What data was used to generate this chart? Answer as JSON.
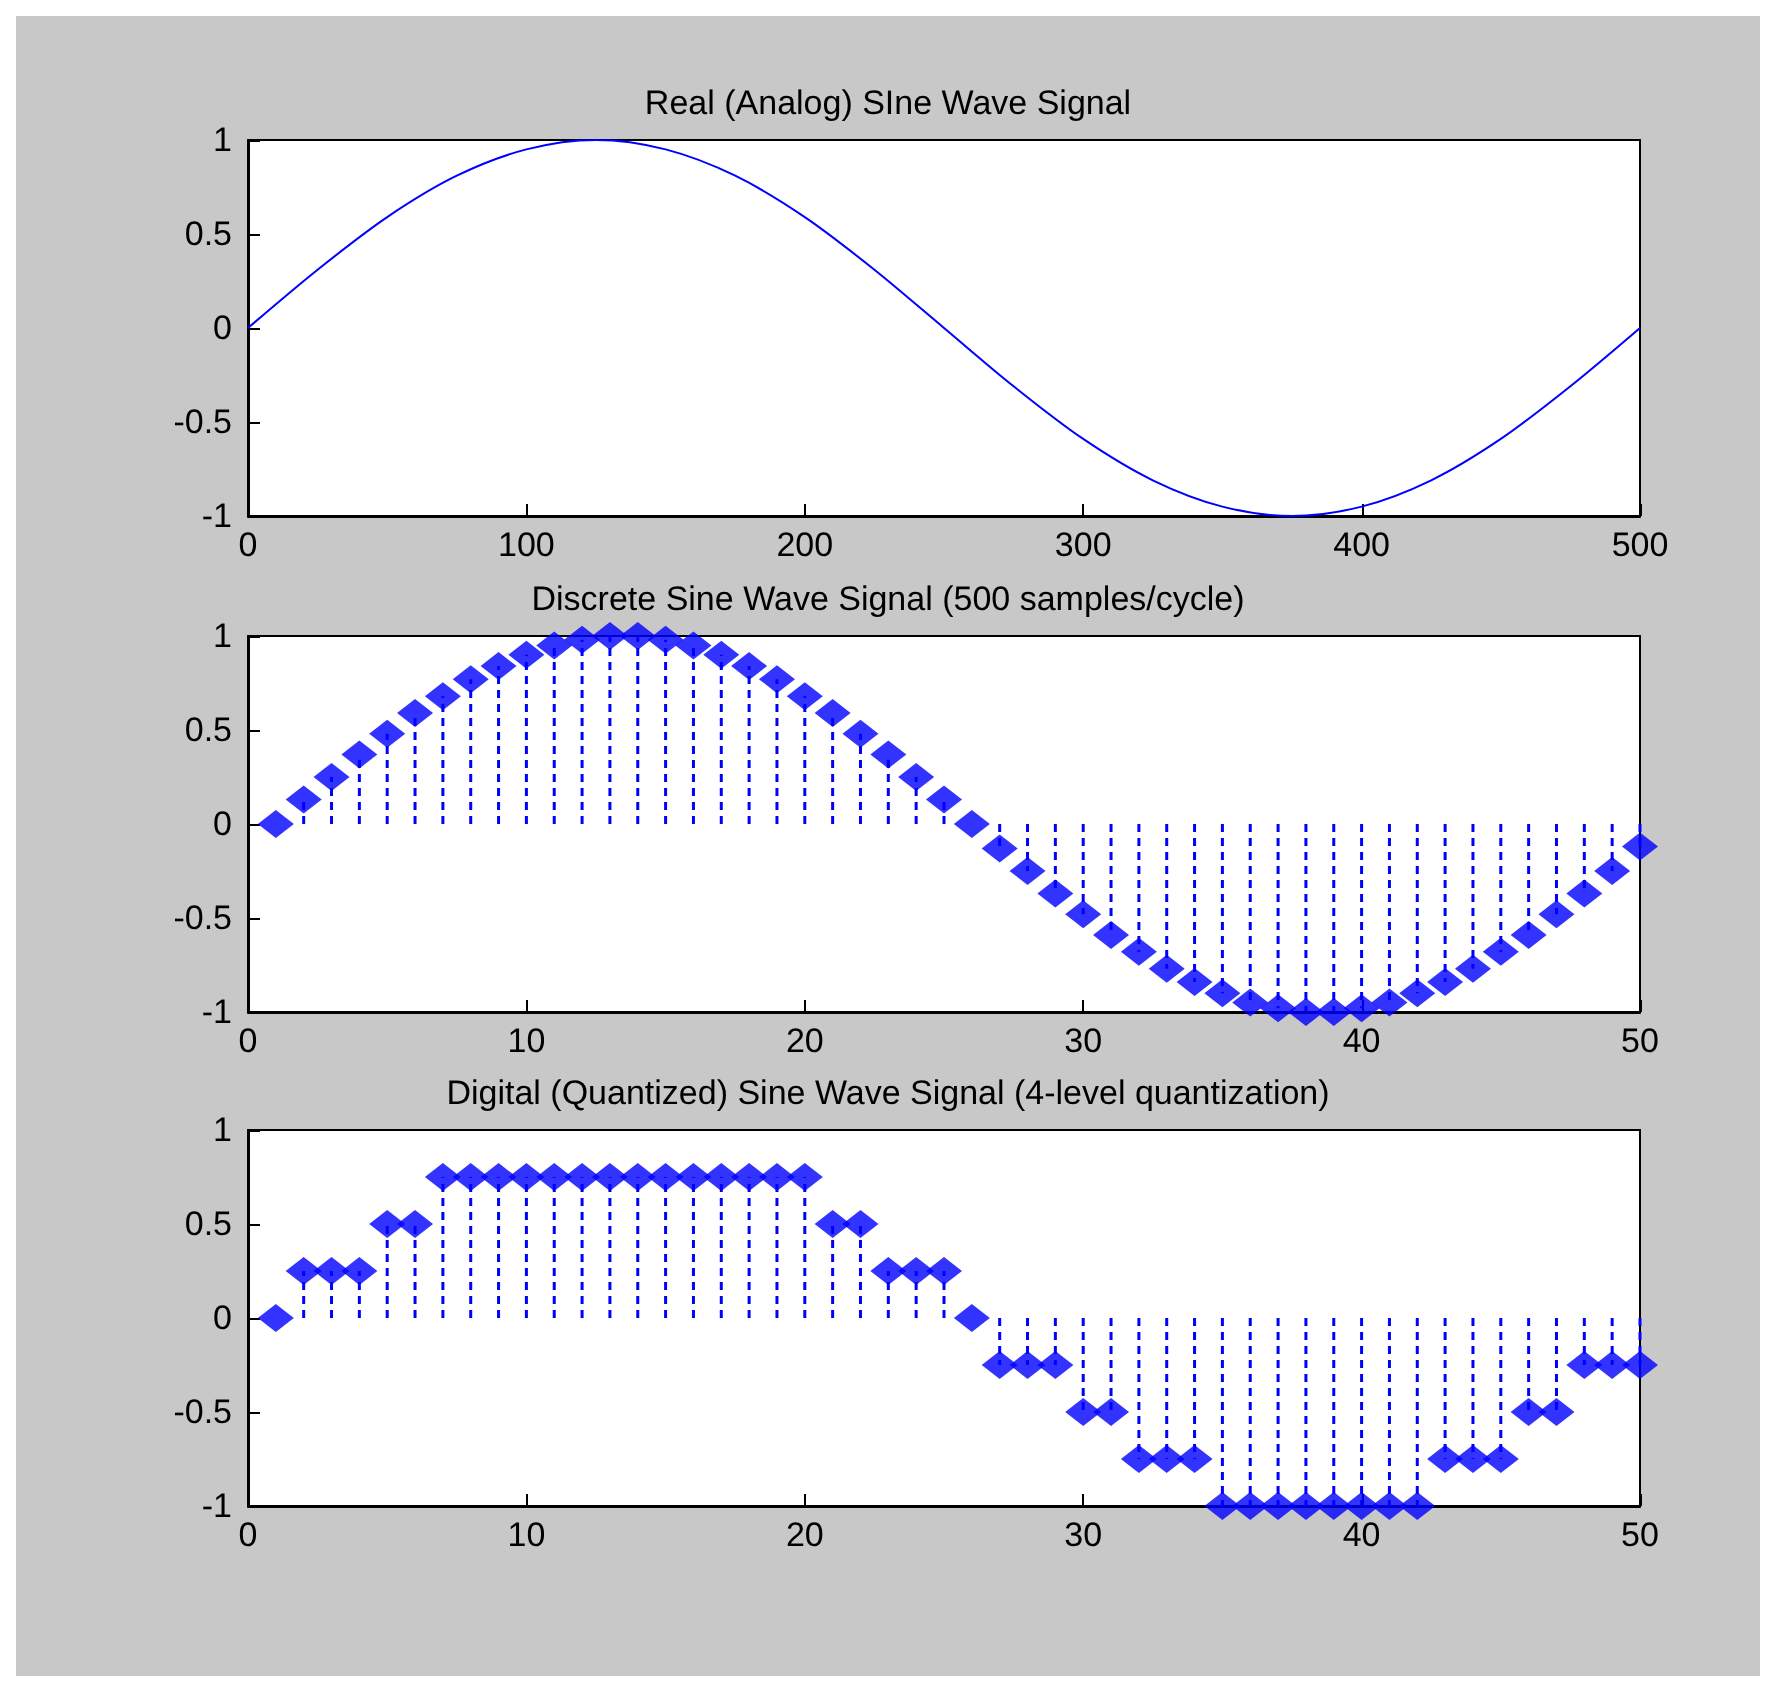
{
  "chart_data": [
    {
      "type": "line",
      "title": "Real (Analog) SIne Wave Signal",
      "x": [
        0,
        25,
        50,
        75,
        100,
        125,
        150,
        175,
        200,
        225,
        250,
        275,
        300,
        325,
        350,
        375,
        400,
        425,
        450,
        475,
        500
      ],
      "series": [
        {
          "color": "#0000ff",
          "values": [
            0,
            0.31,
            0.59,
            0.81,
            0.95,
            1,
            0.95,
            0.81,
            0.59,
            0.31,
            0,
            -0.31,
            -0.59,
            -0.81,
            -0.95,
            -1,
            -0.95,
            -0.81,
            -0.59,
            -0.31,
            0
          ]
        }
      ],
      "xlim": [
        0,
        500
      ],
      "xticks": [
        0,
        100,
        200,
        300,
        400,
        500
      ],
      "ylim": [
        -1,
        1
      ],
      "yticks": [
        -1,
        -0.5,
        0,
        0.5,
        1
      ],
      "grid": false,
      "marker": "none",
      "line_style": "solid"
    },
    {
      "type": "lollipop",
      "title": "Discrete Sine Wave Signal (500 samples/cycle)",
      "x": [
        1,
        2,
        3,
        4,
        5,
        6,
        7,
        8,
        9,
        10,
        11,
        12,
        13,
        14,
        15,
        16,
        17,
        18,
        19,
        20,
        21,
        22,
        23,
        24,
        25,
        26,
        27,
        28,
        29,
        30,
        31,
        32,
        33,
        34,
        35,
        36,
        37,
        38,
        39,
        40,
        41,
        42,
        43,
        44,
        45,
        46,
        47,
        48,
        49,
        50
      ],
      "series": [
        {
          "color": "#0000ff",
          "values": [
            0,
            0.13,
            0.25,
            0.37,
            0.48,
            0.59,
            0.68,
            0.77,
            0.84,
            0.9,
            0.95,
            0.98,
            1,
            1,
            0.98,
            0.95,
            0.9,
            0.84,
            0.77,
            0.68,
            0.59,
            0.48,
            0.37,
            0.25,
            0.13,
            0,
            -0.13,
            -0.25,
            -0.37,
            -0.48,
            -0.59,
            -0.68,
            -0.77,
            -0.84,
            -0.9,
            -0.95,
            -0.98,
            -1,
            -1,
            -0.98,
            -0.95,
            -0.9,
            -0.84,
            -0.77,
            -0.68,
            -0.59,
            -0.48,
            -0.37,
            -0.25,
            -0.12
          ]
        }
      ],
      "xlim": [
        0,
        50
      ],
      "xticks": [
        0,
        10,
        20,
        30,
        40,
        50
      ],
      "ylim": [
        -1,
        1
      ],
      "yticks": [
        -1,
        -0.5,
        0,
        0.5,
        1
      ],
      "grid": false,
      "marker": "diamond",
      "line_style": "dashed"
    },
    {
      "type": "lollipop",
      "title": "Digital (Quantized) Sine Wave Signal (4-level quantization)",
      "x": [
        1,
        2,
        3,
        4,
        5,
        6,
        7,
        8,
        9,
        10,
        11,
        12,
        13,
        14,
        15,
        16,
        17,
        18,
        19,
        20,
        21,
        22,
        23,
        24,
        25,
        26,
        27,
        28,
        29,
        30,
        31,
        32,
        33,
        34,
        35,
        36,
        37,
        38,
        39,
        40,
        41,
        42,
        43,
        44,
        45,
        46,
        47,
        48,
        49,
        50
      ],
      "series": [
        {
          "color": "#0000ff",
          "values": [
            0,
            0.25,
            0.25,
            0.25,
            0.5,
            0.5,
            0.75,
            0.75,
            0.75,
            0.75,
            0.75,
            0.75,
            0.75,
            0.75,
            0.75,
            0.75,
            0.75,
            0.75,
            0.75,
            0.75,
            0.5,
            0.5,
            0.25,
            0.25,
            0.25,
            0,
            -0.25,
            -0.25,
            -0.25,
            -0.5,
            -0.5,
            -0.75,
            -0.75,
            -0.75,
            -1,
            -1,
            -1,
            -1,
            -1,
            -1,
            -1,
            -1,
            -0.75,
            -0.75,
            -0.75,
            -0.5,
            -0.5,
            -0.25,
            -0.25,
            -0.25
          ]
        }
      ],
      "xlim": [
        0,
        50
      ],
      "xticks": [
        0,
        10,
        20,
        30,
        40,
        50
      ],
      "ylim": [
        -1,
        1
      ],
      "yticks": [
        -1,
        -0.5,
        0,
        0.5,
        1
      ],
      "grid": false,
      "marker": "diamond",
      "line_style": "dashed"
    }
  ]
}
